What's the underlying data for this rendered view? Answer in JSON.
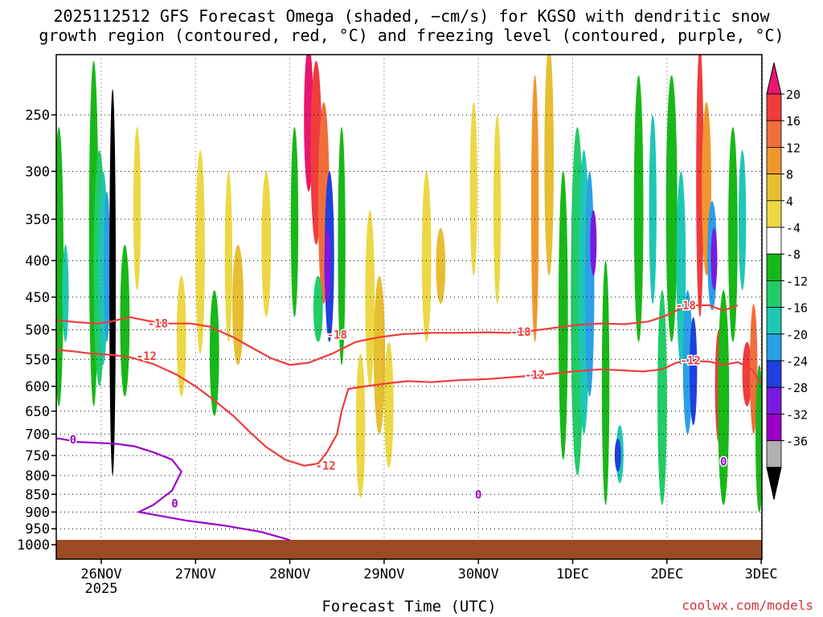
{
  "title_line1": "2025112512 GFS Forecast Omega (shaded, −cm/s) for KGSO with dendritic snow",
  "title_line2": "growth region (contoured, red, °C) and freezing level (contoured, purple, °C)",
  "xlabel": "Forecast Time (UTC)",
  "credit": "coolwx.com/models",
  "chart_data": {
    "type": "heatmap",
    "title": "2025112512 GFS Forecast Omega (shaded, −cm/s) for KGSO with dendritic snow growth region (contoured, red, °C) and freezing level (contoured, purple, °C)",
    "xlabel": "Forecast Time (UTC)",
    "ylabel": "",
    "y_scale": "pressure (log)",
    "ylim": [
      1000,
      200
    ],
    "xlim": [
      "2025-11-25 12Z",
      "2025-12-03 00Z"
    ],
    "x_ticks": [
      {
        "label": "26NOV",
        "sub": "2025",
        "day": 1
      },
      {
        "label": "27NOV",
        "day": 2
      },
      {
        "label": "28NOV",
        "day": 3
      },
      {
        "label": "29NOV",
        "day": 4
      },
      {
        "label": "30NOV",
        "day": 5
      },
      {
        "label": "1DEC",
        "day": 6
      },
      {
        "label": "2DEC",
        "day": 7
      },
      {
        "label": "3DEC",
        "day": 8
      }
    ],
    "y_ticks": [
      250,
      300,
      350,
      400,
      450,
      500,
      550,
      600,
      650,
      700,
      750,
      800,
      850,
      900,
      950,
      1000
    ],
    "grid": true,
    "colorbar": {
      "labels": [
        "20",
        "16",
        "12",
        "8",
        "4",
        "-4",
        "-8",
        "-12",
        "-16",
        "-20",
        "-24",
        "-28",
        "-32",
        "-36"
      ],
      "colors": [
        "#e8176e",
        "#f03c3c",
        "#f06e3c",
        "#f0962d",
        "#e6be32",
        "#ecd846",
        "#ffffff",
        "#18b818",
        "#22cc66",
        "#1ec8b4",
        "#2aa0e6",
        "#2040e0",
        "#7a1ae0",
        "#9a00c8",
        "#b0b0b0",
        "#000000"
      ]
    },
    "contour_labels": [
      {
        "series": "dendritic",
        "text": "-18"
      },
      {
        "series": "dendritic",
        "text": "-12"
      },
      {
        "series": "freezing",
        "text": "0"
      }
    ],
    "dendritic_minus18": [
      [
        0.0,
        462
      ],
      [
        0.18,
        468
      ],
      [
        0.36,
        478
      ],
      [
        0.55,
        485
      ],
      [
        0.75,
        488
      ],
      [
        0.95,
        490
      ],
      [
        1.1,
        487
      ],
      [
        1.3,
        480
      ],
      [
        1.5,
        486
      ],
      [
        1.7,
        490
      ],
      [
        1.95,
        490
      ],
      [
        2.15,
        495
      ],
      [
        2.4,
        512
      ],
      [
        2.6,
        530
      ],
      [
        2.8,
        548
      ],
      [
        3.0,
        560
      ],
      [
        3.2,
        556
      ],
      [
        3.45,
        540
      ],
      [
        3.7,
        520
      ],
      [
        3.95,
        512
      ],
      [
        4.2,
        507
      ],
      [
        4.5,
        505
      ],
      [
        4.8,
        505
      ],
      [
        5.1,
        504
      ],
      [
        5.3,
        505
      ],
      [
        5.55,
        502
      ],
      [
        5.8,
        497
      ],
      [
        6.05,
        492
      ],
      [
        6.3,
        490
      ],
      [
        6.55,
        491
      ],
      [
        6.8,
        487
      ],
      [
        6.95,
        480
      ],
      [
        7.1,
        470
      ],
      [
        7.25,
        462
      ],
      [
        7.45,
        462
      ],
      [
        7.6,
        470
      ],
      [
        7.75,
        462
      ]
    ],
    "dendritic_minus12": [
      [
        0.0,
        524
      ],
      [
        0.2,
        526
      ],
      [
        0.45,
        532
      ],
      [
        0.7,
        536
      ],
      [
        0.9,
        540
      ],
      [
        1.1,
        542
      ],
      [
        1.3,
        546
      ],
      [
        1.55,
        558
      ],
      [
        1.8,
        578
      ],
      [
        2.0,
        600
      ],
      [
        2.2,
        628
      ],
      [
        2.4,
        660
      ],
      [
        2.6,
        700
      ],
      [
        2.75,
        730
      ],
      [
        2.95,
        760
      ],
      [
        3.15,
        775
      ],
      [
        3.3,
        770
      ],
      [
        3.4,
        740
      ],
      [
        3.5,
        700
      ],
      [
        3.55,
        650
      ],
      [
        3.62,
        605
      ],
      [
        3.8,
        600
      ],
      [
        4.0,
        595
      ],
      [
        4.25,
        590
      ],
      [
        4.5,
        592
      ],
      [
        4.8,
        588
      ],
      [
        5.1,
        586
      ],
      [
        5.4,
        582
      ],
      [
        5.7,
        578
      ],
      [
        6.0,
        572
      ],
      [
        6.3,
        568
      ],
      [
        6.55,
        570
      ],
      [
        6.75,
        572
      ],
      [
        6.95,
        568
      ],
      [
        7.1,
        556
      ],
      [
        7.25,
        553
      ],
      [
        7.45,
        554
      ],
      [
        7.6,
        560
      ],
      [
        7.75,
        555
      ],
      [
        7.9,
        568
      ],
      [
        8.0,
        595
      ]
    ],
    "freezing_level_0": [
      [
        0.0,
        705
      ],
      [
        0.15,
        710
      ],
      [
        0.35,
        715
      ],
      [
        0.55,
        710
      ],
      [
        0.75,
        718
      ],
      [
        0.95,
        720
      ],
      [
        1.15,
        722
      ],
      [
        1.35,
        728
      ],
      [
        1.55,
        742
      ],
      [
        1.75,
        760
      ],
      [
        1.85,
        790
      ],
      [
        1.75,
        840
      ],
      [
        1.55,
        880
      ],
      [
        1.4,
        900
      ],
      [
        1.6,
        910
      ],
      [
        1.9,
        925
      ],
      [
        2.3,
        940
      ],
      [
        2.7,
        960
      ],
      [
        3.0,
        985
      ]
    ],
    "values_note_pressure_levels_hPa": [
      250,
      300,
      350,
      400,
      450,
      500,
      550,
      600,
      650,
      700,
      750,
      800,
      850,
      900,
      950,
      1000
    ]
  }
}
